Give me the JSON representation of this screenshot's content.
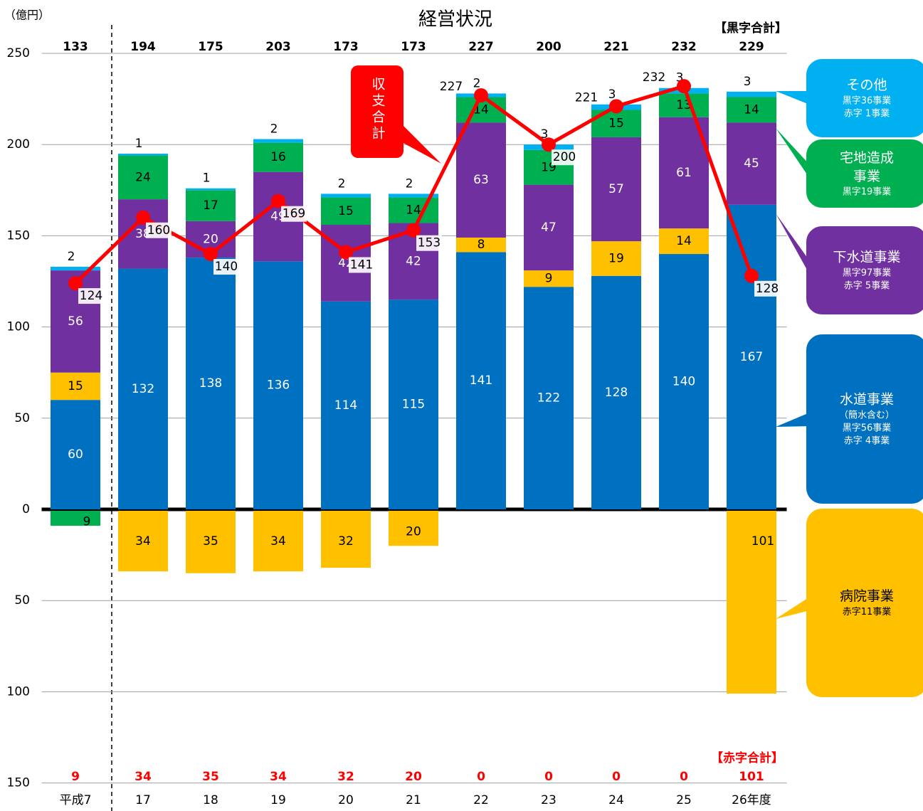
{
  "chart_data": {
    "type": "stacked_bar",
    "title": "経営状況",
    "unit_label": "（億円）",
    "surplus_total_label": "【黒字合計】",
    "deficit_total_label": "【赤字合計】",
    "categories": [
      "平成7",
      "17",
      "18",
      "19",
      "20",
      "21",
      "22",
      "23",
      "24",
      "25",
      "26年度"
    ],
    "ylim": [
      -150,
      250
    ],
    "yticks": [
      250,
      200,
      150,
      100,
      50,
      0,
      {
        "value": -50,
        "label": "50"
      },
      {
        "value": -100,
        "label": "100"
      },
      {
        "value": -150,
        "label": "150"
      }
    ],
    "grid": true,
    "series": [
      {
        "name": "水道事業",
        "color": "#0070c0",
        "label_color": "#ffffff",
        "notes": [
          "（簡水含む）",
          "黒字56事業",
          "赤字 4事業"
        ],
        "values": [
          60,
          132,
          138,
          136,
          114,
          115,
          141,
          122,
          128,
          140,
          167
        ]
      },
      {
        "name": "病院事業",
        "color": "#ffc000",
        "label_color": "#000000",
        "notes": [
          "赤字11事業"
        ],
        "values": [
          15,
          null,
          null,
          null,
          null,
          null,
          8,
          9,
          19,
          14,
          null
        ],
        "negative_values": [
          null,
          -34,
          -35,
          -34,
          -32,
          -20,
          null,
          null,
          null,
          null,
          -101
        ],
        "negative_value_labels": [
          null,
          "34",
          "35",
          "34",
          "32",
          "20",
          null,
          null,
          null,
          null,
          "101"
        ]
      },
      {
        "name": "下水道事業",
        "color": "#7030a0",
        "label_color": "#ffffff",
        "notes": [
          "黒字97事業",
          "赤字 5事業"
        ],
        "values": [
          56,
          38,
          20,
          49,
          42,
          42,
          63,
          47,
          57,
          61,
          45
        ]
      },
      {
        "name": "宅地造成事業",
        "color": "#00b050",
        "label_color": "#000000",
        "notes": [
          "黒字19事業"
        ],
        "values": [
          null,
          24,
          17,
          16,
          15,
          14,
          14,
          19,
          15,
          13,
          14
        ],
        "negative_values": [
          -9,
          null,
          null,
          null,
          null,
          null,
          null,
          null,
          null,
          null,
          null
        ],
        "negative_value_labels": [
          "9",
          null,
          null,
          null,
          null,
          null,
          null,
          null,
          null,
          null,
          null
        ]
      },
      {
        "name": "その他",
        "color": "#00b0f0",
        "label_color": "#000000",
        "notes": [
          "黒字36事業",
          "赤字 1事業"
        ],
        "values": [
          2,
          1,
          1,
          2,
          2,
          2,
          2,
          3,
          3,
          3,
          3
        ]
      }
    ],
    "line_series": {
      "name": "収支合計",
      "color": "#ff0000",
      "values": [
        124,
        160,
        140,
        169,
        141,
        153,
        227,
        200,
        221,
        232,
        128
      ]
    },
    "surplus_totals": [
      133,
      194,
      175,
      203,
      173,
      173,
      227,
      200,
      221,
      232,
      229
    ],
    "deficit_totals": [
      9,
      34,
      35,
      34,
      32,
      20,
      0,
      0,
      0,
      0,
      101
    ]
  }
}
